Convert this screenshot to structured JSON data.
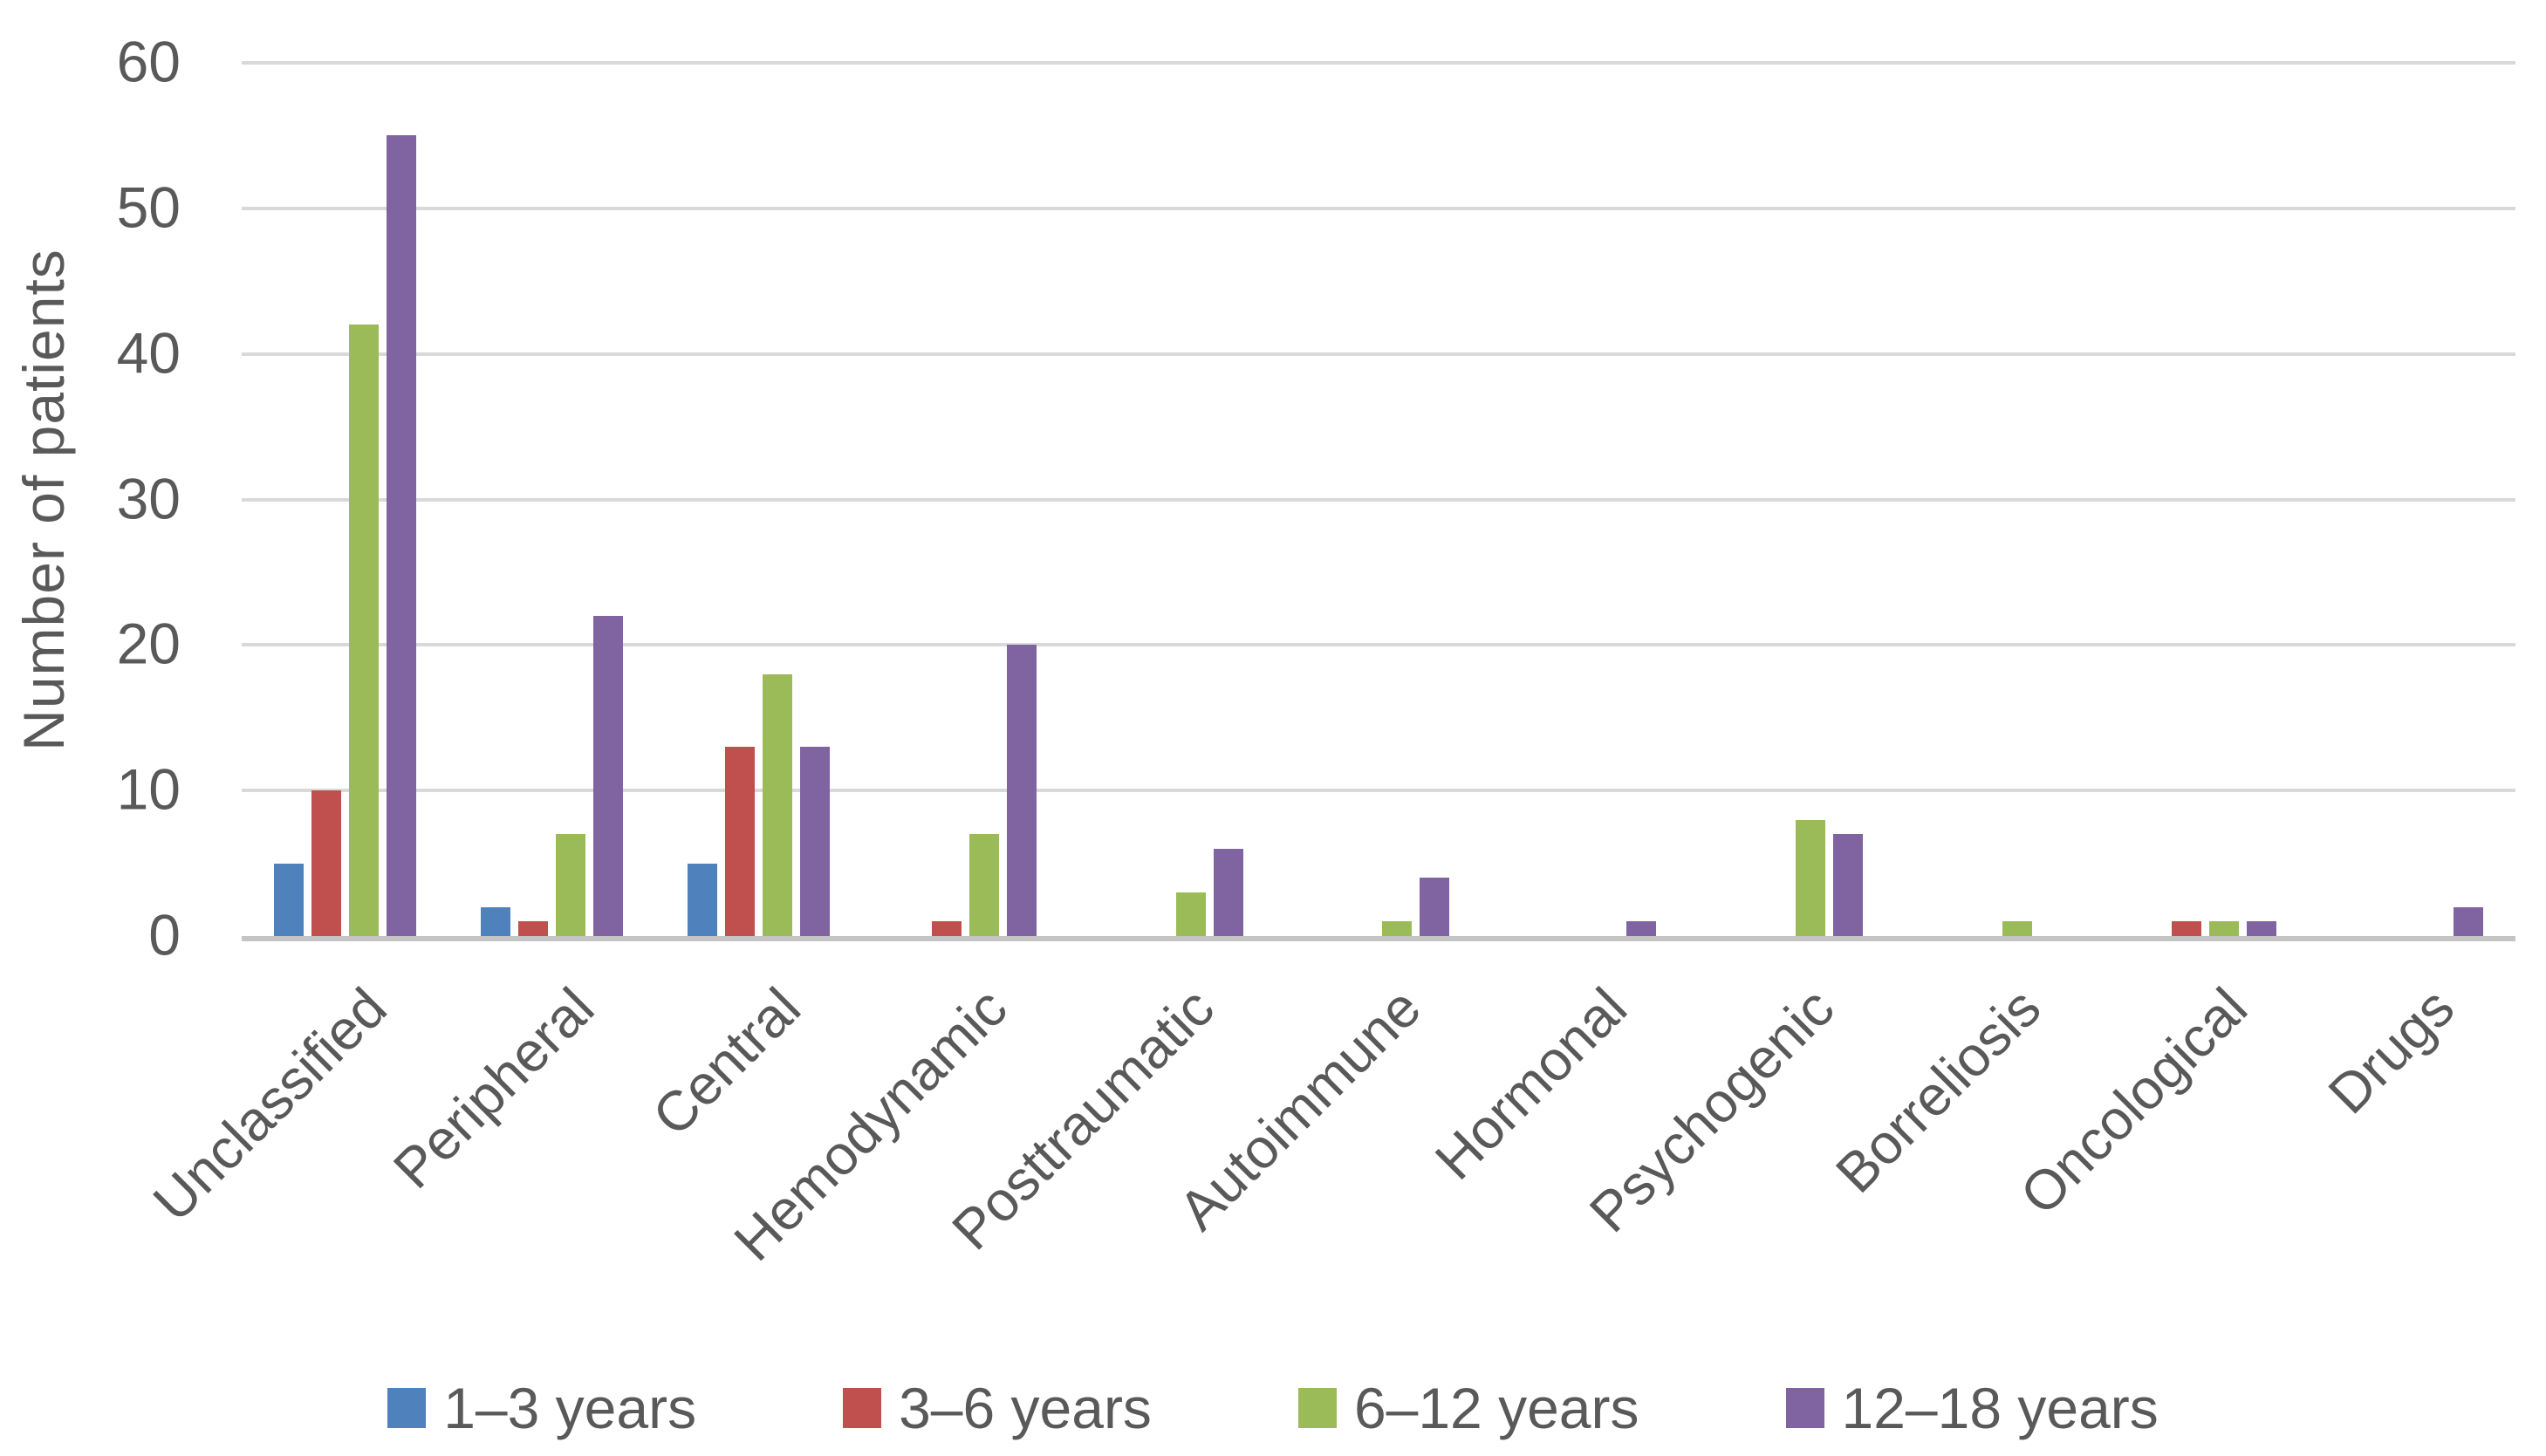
{
  "chart_data": {
    "type": "bar",
    "title": "",
    "xlabel": "",
    "ylabel": "Number of patients",
    "ylim": [
      0,
      60
    ],
    "yticks": [
      0,
      10,
      20,
      30,
      40,
      50,
      60
    ],
    "grid": "horizontal",
    "legend_position": "bottom",
    "categories": [
      "Unclassified",
      "Peripheral",
      "Central",
      "Hemodynamic",
      "Posttraumatic",
      "Autoimmune",
      "Hormonal",
      "Psychogenic",
      "Borreliosis",
      "Oncological",
      "Drugs"
    ],
    "series": [
      {
        "name": "1–3 years",
        "color": "#4F81BD",
        "values": [
          5,
          2,
          5,
          0,
          0,
          0,
          0,
          0,
          0,
          0,
          0
        ]
      },
      {
        "name": "3–6 years",
        "color": "#C0504D",
        "values": [
          10,
          1,
          13,
          1,
          0,
          0,
          0,
          0,
          0,
          1,
          0
        ]
      },
      {
        "name": "6–12 years",
        "color": "#9BBB59",
        "values": [
          42,
          7,
          18,
          7,
          3,
          1,
          0,
          8,
          1,
          1,
          0
        ]
      },
      {
        "name": "12–18 years",
        "color": "#8064A2",
        "values": [
          55,
          22,
          13,
          20,
          6,
          4,
          1,
          7,
          0,
          1,
          2
        ]
      }
    ]
  },
  "colors": {
    "text": "#595959",
    "gridline": "#D9D9D9",
    "baseline": "#C4C4C4",
    "background": "#FFFFFF"
  }
}
